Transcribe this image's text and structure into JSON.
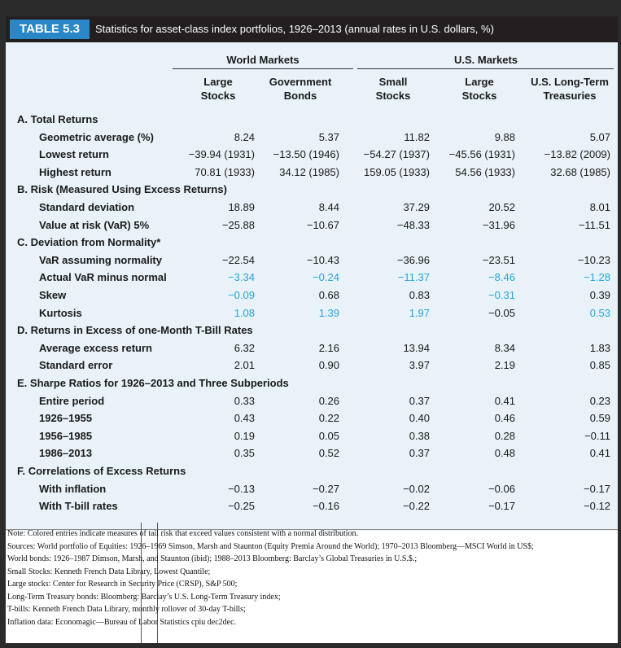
{
  "header": {
    "label": "TABLE 5.3",
    "caption": "Statistics for asset-class index portfolios, 1926–2013 (annual rates in U.S. dollars, %)"
  },
  "groups": {
    "world": "World Markets",
    "us": "U.S. Markets"
  },
  "columns": [
    [
      "Large",
      "Stocks"
    ],
    [
      "Government",
      "Bonds"
    ],
    [
      "Small",
      "Stocks"
    ],
    [
      "Large",
      "Stocks"
    ],
    [
      "U.S. Long-Term",
      "Treasuries"
    ]
  ],
  "sections": [
    {
      "title": "A. Total Returns",
      "rows": [
        {
          "label": "Geometric average (%)",
          "values": [
            "8.24",
            "5.37",
            "11.82",
            "9.88",
            "5.07"
          ],
          "blue": [
            false,
            false,
            false,
            false,
            false
          ]
        },
        {
          "label": "Lowest return",
          "values": [
            "−39.94 (1931)",
            "−13.50 (1946)",
            "−54.27 (1937)",
            "−45.56 (1931)",
            "−13.82 (2009)"
          ],
          "blue": [
            false,
            false,
            false,
            false,
            false
          ]
        },
        {
          "label": "Highest return",
          "values": [
            "70.81 (1933)",
            "34.12 (1985)",
            "159.05 (1933)",
            "54.56 (1933)",
            "32.68 (1985)"
          ],
          "blue": [
            false,
            false,
            false,
            false,
            false
          ]
        }
      ]
    },
    {
      "title": "B. Risk (Measured Using Excess Returns)",
      "rows": [
        {
          "label": "Standard deviation",
          "values": [
            "18.89",
            "8.44",
            "37.29",
            "20.52",
            "8.01"
          ],
          "blue": [
            false,
            false,
            false,
            false,
            false
          ]
        },
        {
          "label": "Value at risk (VaR) 5%",
          "values": [
            "−25.88",
            "−10.67",
            "−48.33",
            "−31.96",
            "−11.51"
          ],
          "blue": [
            false,
            false,
            false,
            false,
            false
          ]
        }
      ]
    },
    {
      "title": "C. Deviation from Normality*",
      "rows": [
        {
          "label": "VaR assuming normality",
          "values": [
            "−22.54",
            "−10.43",
            "−36.96",
            "−23.51",
            "−10.23"
          ],
          "blue": [
            false,
            false,
            false,
            false,
            false
          ]
        },
        {
          "label": "Actual VaR minus normal",
          "values": [
            "−3.34",
            "−0.24",
            "−11.37",
            "−8.46",
            "−1.28"
          ],
          "blue": [
            true,
            true,
            true,
            true,
            true
          ]
        },
        {
          "label": "Skew",
          "values": [
            "−0.09",
            "0.68",
            "0.83",
            "−0.31",
            "0.39"
          ],
          "blue": [
            true,
            false,
            false,
            true,
            false
          ]
        },
        {
          "label": "Kurtosis",
          "values": [
            "1.08",
            "1.39",
            "1.97",
            "−0.05",
            "0.53"
          ],
          "blue": [
            true,
            true,
            true,
            false,
            true
          ]
        }
      ]
    },
    {
      "title": "D. Returns in Excess of one-Month T-Bill Rates",
      "rows": [
        {
          "label": "Average excess return",
          "values": [
            "6.32",
            "2.16",
            "13.94",
            "8.34",
            "1.83"
          ],
          "blue": [
            false,
            false,
            false,
            false,
            false
          ]
        },
        {
          "label": "Standard error",
          "values": [
            "2.01",
            "0.90",
            "3.97",
            "2.19",
            "0.85"
          ],
          "blue": [
            false,
            false,
            false,
            false,
            false
          ]
        }
      ]
    },
    {
      "title": "E. Sharpe Ratios for 1926–2013 and Three Subperiods",
      "rows": [
        {
          "label": "Entire period",
          "values": [
            "0.33",
            "0.26",
            "0.37",
            "0.41",
            "0.23"
          ],
          "blue": [
            false,
            false,
            false,
            false,
            false
          ]
        },
        {
          "label": "1926–1955",
          "values": [
            "0.43",
            "0.22",
            "0.40",
            "0.46",
            "0.59"
          ],
          "blue": [
            false,
            false,
            false,
            false,
            false
          ]
        },
        {
          "label": "1956–1985",
          "values": [
            "0.19",
            "0.05",
            "0.38",
            "0.28",
            "−0.11"
          ],
          "blue": [
            false,
            false,
            false,
            false,
            false
          ]
        },
        {
          "label": "1986–2013",
          "values": [
            "0.35",
            "0.52",
            "0.37",
            "0.48",
            "0.41"
          ],
          "blue": [
            false,
            false,
            false,
            false,
            false
          ]
        }
      ]
    },
    {
      "title": "F. Correlations of Excess Returns",
      "rows": [
        {
          "label": "With inflation",
          "values": [
            "−0.13",
            "−0.27",
            "−0.02",
            "−0.06",
            "−0.17"
          ],
          "blue": [
            false,
            false,
            false,
            false,
            false
          ]
        },
        {
          "label": "With T-bill rates",
          "values": [
            "−0.25",
            "−0.16",
            "−0.22",
            "−0.17",
            "−0.12"
          ],
          "blue": [
            false,
            false,
            false,
            false,
            false
          ]
        }
      ]
    }
  ],
  "notes": [
    "Note: Colored entries indicate measures of tail risk that exceed values consistent with a normal distribution.",
    "Sources: World portfolio of Equities: 1926–1969 Simson, Marsh and Staunton (Equity Premia Around the World); 1970–2013 Bloomberg—MSCI World in US$;",
    "World bonds: 1926–1987 Dimson, Marsh, and Staunton (ibid); 1988–2013 Bloomberg: Barclay’s Global Treasuries in U.S.$.;",
    "Small Stocks: Kenneth French Data Library, Lowest Quantile;",
    "Large stocks: Center for Research in Security Price (CRSP), S&P 500;",
    "Long-Term Treasury bonds: Bloomberg: Barclay’s U.S. Long-Term Treasury index;",
    "T-bills: Kenneth French Data Library, monthly rollover of 30-day T-bills;",
    "Inflation data: Economagic—Bureau of Labor Statistics cpiu dec2dec."
  ],
  "colors": {
    "accent": "#2a87c7",
    "tail_risk": "#2aa3dc",
    "header_bg": "#231f20",
    "table_bg": "#e8f2f8"
  }
}
